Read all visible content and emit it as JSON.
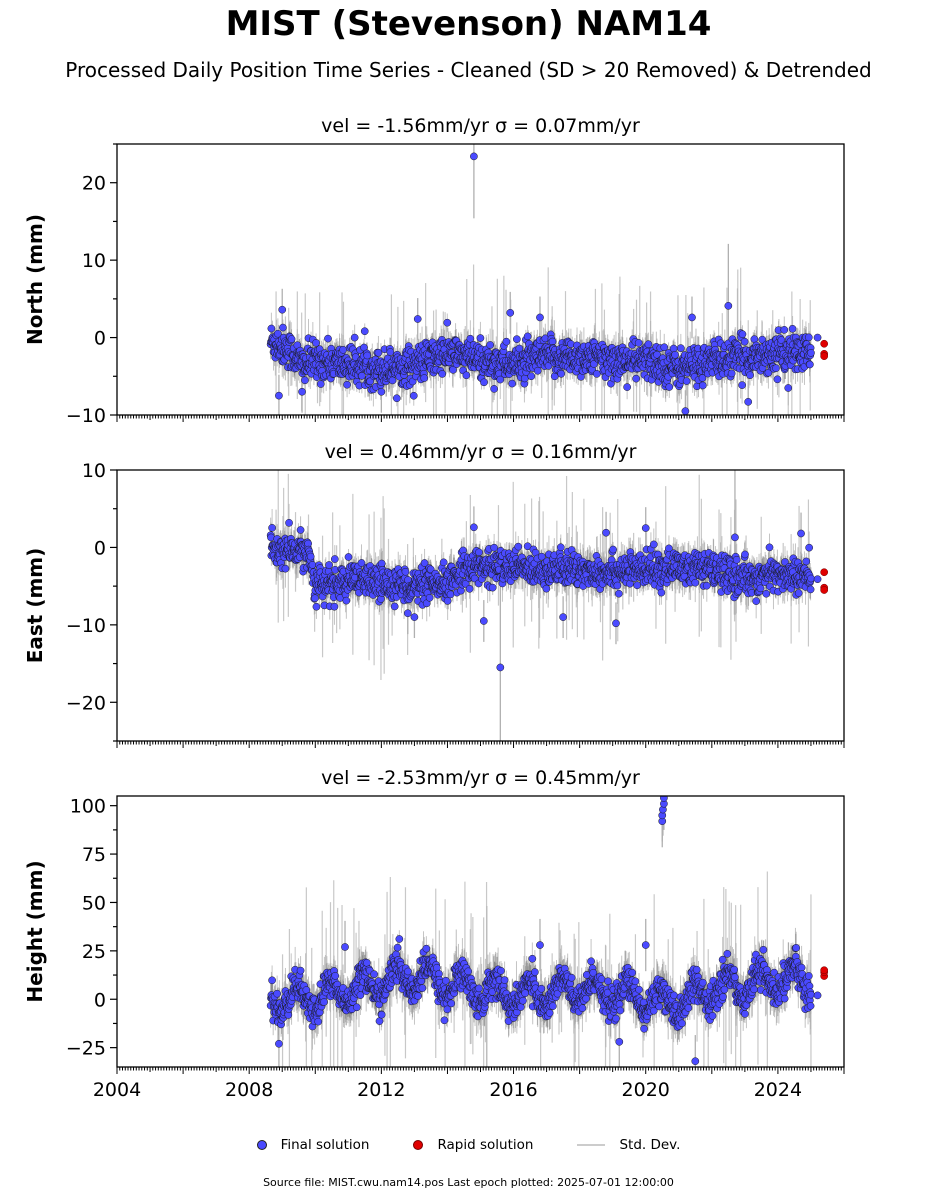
{
  "header": {
    "title": "MIST (Stevenson) NAM14",
    "subtitle": "Processed Daily Position Time Series - Cleaned (SD > 20 Removed) & Detrended"
  },
  "legend": {
    "final_label": "Final solution",
    "rapid_label": "Rapid solution",
    "std_label": "Std. Dev."
  },
  "footer": {
    "text": "Source file: MIST.cwu.nam14.pos  Last epoch plotted: 2025-07-01 12:00:00"
  },
  "colors": {
    "final": "#4a4aff",
    "rapid": "#e00000",
    "std": "#b0b0b0"
  },
  "chart_data": [
    {
      "type": "scatter",
      "title": "vel = -1.56mm/yr   σ = 0.07mm/yr",
      "ylabel": "North (mm)",
      "xlim": [
        2004,
        2026
      ],
      "ylim": [
        -10,
        25
      ],
      "yticks": [
        -10,
        0,
        10,
        20
      ],
      "ytick_labels": [
        "−10",
        "0",
        "10",
        "20"
      ],
      "x_start": 2008.65,
      "x_end": 2025.0,
      "trend": [
        [
          2008.7,
          -0.5
        ],
        [
          2009.2,
          -1.5
        ],
        [
          2009.6,
          -3.5
        ],
        [
          2010.0,
          -3.0
        ],
        [
          2011.0,
          -3.5
        ],
        [
          2012.0,
          -4.0
        ],
        [
          2013.0,
          -3.5
        ],
        [
          2014.0,
          -2.0
        ],
        [
          2015.0,
          -3.0
        ],
        [
          2016.0,
          -3.5
        ],
        [
          2017.0,
          -2.5
        ],
        [
          2018.0,
          -2.5
        ],
        [
          2019.0,
          -3.0
        ],
        [
          2020.0,
          -3.0
        ],
        [
          2021.0,
          -4.0
        ],
        [
          2022.0,
          -3.0
        ],
        [
          2023.0,
          -2.5
        ],
        [
          2024.0,
          -2.0
        ],
        [
          2025.0,
          -2.0
        ]
      ],
      "noise": 1.2,
      "std_typical": 1.8,
      "outliers": [
        [
          2014.8,
          23.4
        ],
        [
          2009.0,
          3.6
        ],
        [
          2013.1,
          2.4
        ],
        [
          2015.9,
          3.2
        ],
        [
          2016.8,
          2.6
        ],
        [
          2021.4,
          2.6
        ],
        [
          2022.5,
          4.1
        ],
        [
          2021.2,
          -9.5
        ],
        [
          2023.1,
          -8.3
        ],
        [
          2008.9,
          -7.5
        ],
        [
          2009.6,
          -7.0
        ],
        [
          2012.0,
          -7.0
        ]
      ],
      "outlier_std": {
        "2014.8": 8.0,
        "2022.5": 8.0
      },
      "rapid": [
        [
          2025.4,
          -0.8
        ],
        [
          2025.4,
          -2.1
        ],
        [
          2025.4,
          -2.4
        ]
      ],
      "final_tail": [
        [
          2025.2,
          0.0
        ]
      ]
    },
    {
      "type": "scatter",
      "title": "vel = 0.46mm/yr   σ = 0.16mm/yr",
      "ylabel": "East (mm)",
      "xlim": [
        2004,
        2026
      ],
      "ylim": [
        -25,
        10
      ],
      "yticks": [
        -20,
        -10,
        0,
        10
      ],
      "ytick_labels": [
        "−20",
        "−10",
        "0",
        "10"
      ],
      "x_start": 2008.65,
      "x_end": 2025.0,
      "trend": [
        [
          2008.7,
          -0.5
        ],
        [
          2009.8,
          -0.5
        ],
        [
          2010.0,
          -5.0
        ],
        [
          2011.0,
          -4.5
        ],
        [
          2012.0,
          -4.5
        ],
        [
          2013.0,
          -5.0
        ],
        [
          2014.0,
          -5.0
        ],
        [
          2014.5,
          -2.5
        ],
        [
          2016.0,
          -2.5
        ],
        [
          2018.0,
          -3.0
        ],
        [
          2020.0,
          -3.0
        ],
        [
          2021.0,
          -2.5
        ],
        [
          2022.0,
          -3.0
        ],
        [
          2023.0,
          -4.0
        ],
        [
          2024.0,
          -3.5
        ],
        [
          2025.0,
          -4.0
        ]
      ],
      "noise": 1.1,
      "std_typical": 1.8,
      "outliers": [
        [
          2015.6,
          -15.5
        ],
        [
          2014.8,
          2.6
        ],
        [
          2018.8,
          1.9
        ],
        [
          2020.0,
          2.5
        ],
        [
          2022.7,
          1.3
        ],
        [
          2024.7,
          1.8
        ],
        [
          2013.0,
          -9.0
        ],
        [
          2015.1,
          -9.5
        ],
        [
          2017.5,
          -9.0
        ],
        [
          2019.1,
          -9.8
        ],
        [
          2012.8,
          -8.5
        ]
      ],
      "outlier_std": {
        "2015.6": 12.0,
        "2022.7": 10.0
      },
      "rapid": [
        [
          2025.4,
          -3.2
        ],
        [
          2025.4,
          -5.2
        ],
        [
          2025.4,
          -5.5
        ]
      ],
      "final_tail": [
        [
          2025.2,
          -4.1
        ]
      ]
    },
    {
      "type": "scatter",
      "title": "vel = -2.53mm/yr   σ = 0.45mm/yr",
      "ylabel": "Height (mm)",
      "xlim": [
        2004,
        2026
      ],
      "ylim": [
        -35,
        105
      ],
      "yticks": [
        -25,
        0,
        25,
        50,
        75,
        100
      ],
      "ytick_labels": [
        "−25",
        "0",
        "25",
        "50",
        "75",
        "100"
      ],
      "xticks": [
        2004,
        2008,
        2012,
        2016,
        2020,
        2024
      ],
      "xtick_labels": [
        "2004",
        "2008",
        "2012",
        "2016",
        "2020",
        "2024"
      ],
      "x_start": 2008.65,
      "x_end": 2025.0,
      "trend": [
        [
          2008.7,
          0.0
        ],
        [
          2009.5,
          0.0
        ],
        [
          2010.0,
          0.0
        ],
        [
          2011.0,
          5.0
        ],
        [
          2012.0,
          8.0
        ],
        [
          2013.0,
          12.0
        ],
        [
          2014.0,
          8.0
        ],
        [
          2015.0,
          5.0
        ],
        [
          2016.0,
          2.0
        ],
        [
          2017.0,
          3.0
        ],
        [
          2018.0,
          5.0
        ],
        [
          2019.0,
          3.0
        ],
        [
          2020.0,
          0.0
        ],
        [
          2021.0,
          -3.0
        ],
        [
          2022.0,
          5.0
        ],
        [
          2023.0,
          8.0
        ],
        [
          2024.0,
          10.0
        ],
        [
          2025.0,
          10.0
        ]
      ],
      "seasonal_amp": 7.0,
      "noise": 4.0,
      "std_typical": 9.0,
      "outliers": [
        [
          2020.5,
          92.0
        ],
        [
          2020.5,
          95.0
        ],
        [
          2020.52,
          98.0
        ],
        [
          2020.55,
          101.0
        ],
        [
          2020.55,
          104.0
        ],
        [
          2010.9,
          27.0
        ],
        [
          2016.8,
          28.0
        ],
        [
          2020.0,
          28.0
        ],
        [
          2021.5,
          -32.0
        ],
        [
          2008.9,
          -23.0
        ],
        [
          2019.2,
          -22.0
        ]
      ],
      "rapid": [
        [
          2025.4,
          12.0
        ],
        [
          2025.4,
          14.0
        ],
        [
          2025.4,
          15.0
        ]
      ],
      "final_tail": [
        [
          2025.2,
          2.0
        ]
      ]
    }
  ]
}
